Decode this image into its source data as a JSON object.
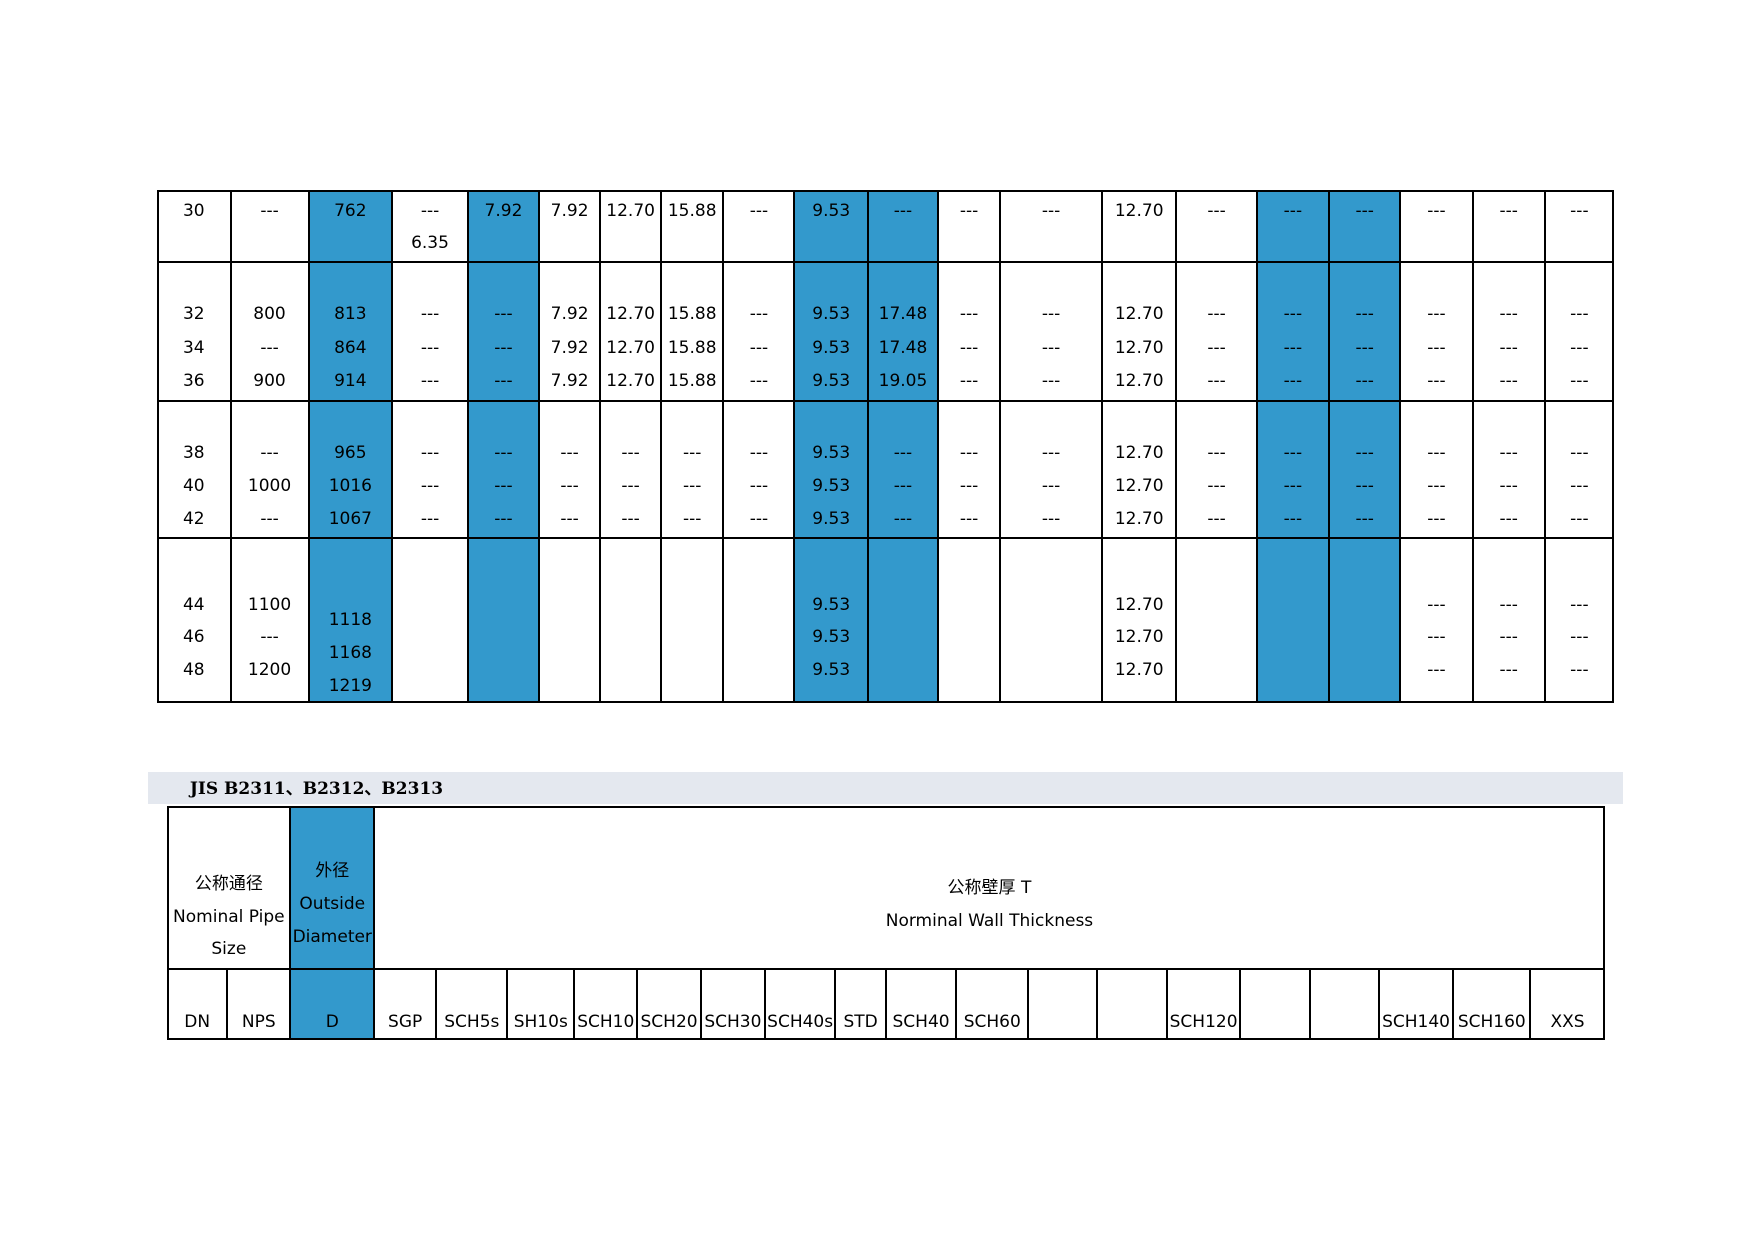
{
  "top_table": {
    "groups": [
      {
        "cells": [
          [
            "30"
          ],
          [
            "---"
          ],
          [
            "762"
          ],
          [
            "---",
            "6.35"
          ],
          [
            "7.92"
          ],
          [
            "7.92"
          ],
          [
            "12.70"
          ],
          [
            "15.88"
          ],
          [
            "---"
          ],
          [
            "9.53"
          ],
          [
            "---"
          ],
          [
            "---"
          ],
          [
            "---"
          ],
          [
            "12.70"
          ],
          [
            "---"
          ],
          [
            "---"
          ],
          [
            "---"
          ],
          [
            "---"
          ],
          [
            "---"
          ],
          [
            "---"
          ]
        ]
      },
      {
        "cells": [
          [
            "32",
            "34",
            "36"
          ],
          [
            "800",
            "---",
            "900"
          ],
          [
            "813",
            "864",
            "914"
          ],
          [
            "---",
            "---",
            "---"
          ],
          [
            "---",
            "---",
            "---"
          ],
          [
            "7.92",
            "7.92",
            "7.92"
          ],
          [
            "12.70",
            "12.70",
            "12.70"
          ],
          [
            "15.88",
            "15.88",
            "15.88"
          ],
          [
            "---",
            "---",
            "---"
          ],
          [
            "9.53",
            "9.53",
            "9.53"
          ],
          [
            "17.48",
            "17.48",
            "19.05"
          ],
          [
            "---",
            "---",
            "---"
          ],
          [
            "---",
            "---",
            "---"
          ],
          [
            "12.70",
            "12.70",
            "12.70"
          ],
          [
            "---",
            "---",
            "---"
          ],
          [
            "---",
            "---",
            "---"
          ],
          [
            "---",
            "---",
            "---"
          ],
          [
            "---",
            "---",
            "---"
          ],
          [
            "---",
            "---",
            "---"
          ],
          [
            "---",
            "---",
            "---"
          ]
        ]
      },
      {
        "cells": [
          [
            "38",
            "40",
            "42"
          ],
          [
            "---",
            "1000",
            "---"
          ],
          [
            "965",
            "1016",
            "1067"
          ],
          [
            "---",
            "---",
            "---"
          ],
          [
            "---",
            "---",
            "---"
          ],
          [
            "---",
            "---",
            "---"
          ],
          [
            "---",
            "---",
            "---"
          ],
          [
            "---",
            "---",
            "---"
          ],
          [
            "---",
            "---",
            "---"
          ],
          [
            "9.53",
            "9.53",
            "9.53"
          ],
          [
            "---",
            "---",
            "---"
          ],
          [
            "---",
            "---",
            "---"
          ],
          [
            "---",
            "---",
            "---"
          ],
          [
            "12.70",
            "12.70",
            "12.70"
          ],
          [
            "---",
            "---",
            "---"
          ],
          [
            "---",
            "---",
            "---"
          ],
          [
            "---",
            "---",
            "---"
          ],
          [
            "---",
            "---",
            "---"
          ],
          [
            "---",
            "---",
            "---"
          ],
          [
            "---",
            "---",
            "---"
          ]
        ]
      },
      {
        "cells": [
          [
            "44",
            "46",
            "48"
          ],
          [
            "1100",
            "---",
            "1200"
          ],
          [
            "1118",
            "1168",
            "1219"
          ],
          null,
          null,
          null,
          null,
          null,
          null,
          [
            "9.53",
            "9.53",
            "9.53"
          ],
          null,
          null,
          null,
          [
            "12.70",
            "12.70",
            "12.70"
          ],
          null,
          null,
          null,
          [
            "---",
            "---",
            "---"
          ],
          [
            "---",
            "---",
            "---"
          ],
          [
            "---",
            "---",
            "---"
          ]
        ]
      }
    ]
  },
  "bottom_table": {
    "title": "JIS B2311、B2312、B2313",
    "header": [
      [
        "公称通径",
        "Nominal Pipe",
        "Size"
      ],
      [
        "外径",
        "Outside",
        "Diameter"
      ],
      [
        "公称壁厚 T",
        "Norminal Wall Thickness"
      ]
    ],
    "columns": [
      "DN",
      "NPS",
      "D",
      "SGP",
      "SCH5s",
      "SH10s",
      "SCH10",
      "SCH20",
      "SCH30",
      "SCH40s",
      "STD",
      "SCH40",
      "SCH60",
      null,
      null,
      "SCH120",
      null,
      null,
      "SCH140",
      "SCH160",
      "XXS"
    ]
  }
}
